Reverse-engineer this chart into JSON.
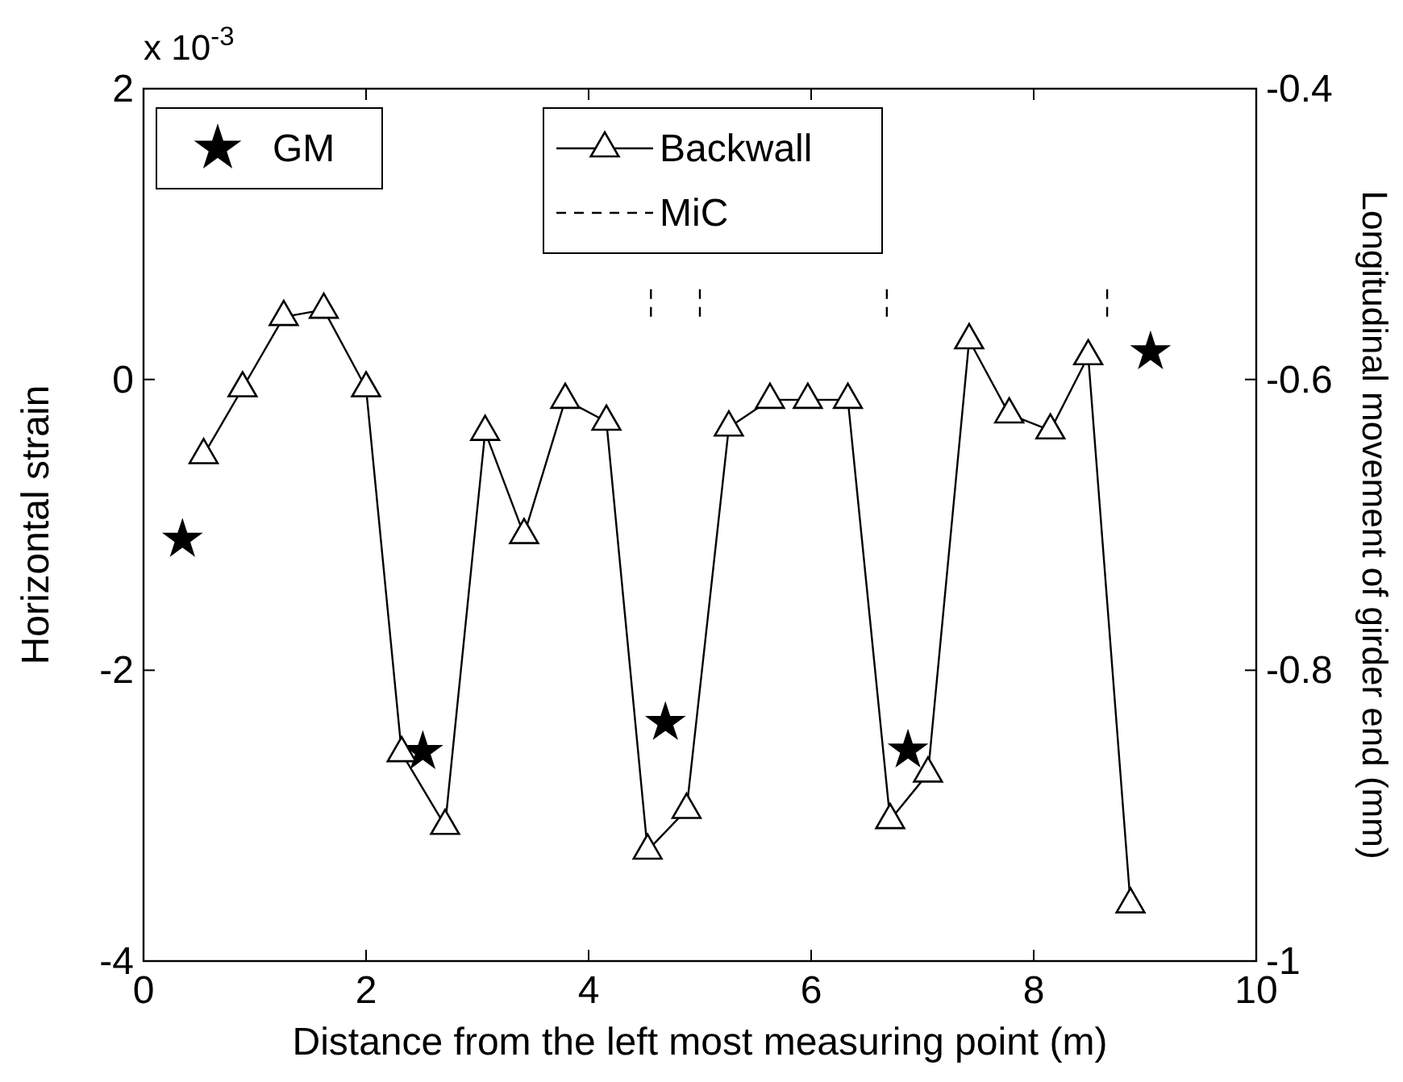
{
  "chart_data": {
    "type": "line",
    "xlabel": "Distance from the left most measuring point (m)",
    "ylabel": "Horizontal strain",
    "y2label": "Longitudinal movement of girder end (mm)",
    "annotations": [
      "x 10$^{-3}$"
    ],
    "xlim": [
      0,
      10
    ],
    "xticks": [
      0,
      2,
      4,
      6,
      8,
      10
    ],
    "ylim": [
      -4,
      2
    ],
    "yticks": [
      -4,
      -2,
      0,
      2
    ],
    "y2lim": [
      -1,
      -0.4
    ],
    "y2ticks": [
      -1,
      -0.8,
      -0.6,
      -0.4
    ],
    "grid": false,
    "legend": "top left",
    "series": [
      {
        "name": "GM",
        "type": "scatter",
        "marker": "star",
        "color": "#000000",
        "x": [
          0.35,
          2.51,
          4.69,
          6.87,
          9.05
        ],
        "values": [
          -1.1,
          -2.56,
          -2.36,
          -2.55,
          0.19
        ]
      },
      {
        "name": "Backwall",
        "marker": "triangle",
        "line_style": "solid",
        "color": "#000000",
        "x": [
          0.54,
          0.89,
          1.26,
          1.62,
          2.0,
          2.32,
          2.71,
          3.07,
          3.42,
          3.79,
          4.16,
          4.53,
          4.88,
          5.26,
          5.63,
          5.97,
          6.33,
          6.71,
          7.05,
          7.42,
          7.78,
          8.15,
          8.49,
          8.87
        ],
        "values": [
          -0.52,
          -0.06,
          0.43,
          0.48,
          -0.06,
          -2.57,
          -3.07,
          -0.36,
          -1.07,
          -0.14,
          -0.29,
          -3.24,
          -2.96,
          -0.33,
          -0.14,
          -0.14,
          -0.14,
          -3.03,
          -2.71,
          0.27,
          -0.24,
          -0.35,
          0.16,
          -3.61
        ]
      },
      {
        "name": "MiC",
        "marker": "none",
        "line_style": "dashed",
        "color": "#000000",
        "x": [
          4.56,
          4.56,
          null,
          5.0,
          5.0,
          null,
          6.68,
          6.68,
          null,
          8.66,
          8.66
        ],
        "values": [
          0.62,
          0.42,
          null,
          0.62,
          0.42,
          null,
          0.62,
          0.42,
          null,
          0.62,
          0.42
        ]
      }
    ]
  }
}
